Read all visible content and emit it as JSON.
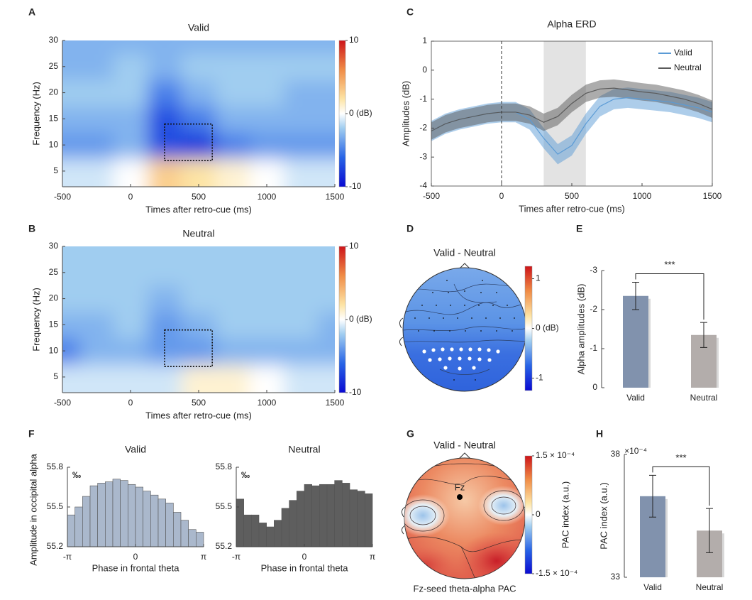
{
  "chart_data": [
    {
      "label": "A",
      "type": "heatmap",
      "title": "Valid",
      "x": [
        -500,
        -250,
        0,
        250,
        500,
        750,
        1000,
        1250,
        1500
      ],
      "y": [
        5,
        10,
        15,
        20,
        25,
        30
      ],
      "z": [
        [
          -1,
          -1,
          0,
          3,
          2,
          1,
          0,
          -1,
          -1
        ],
        [
          -4,
          -4,
          -3,
          -7,
          -8,
          -5,
          -4,
          -4,
          -4
        ],
        [
          -3,
          -3,
          -3,
          -7,
          -5,
          -3,
          -3,
          -3,
          -3
        ],
        [
          -2,
          -2,
          -2,
          -5,
          -3,
          -2,
          -2,
          -3,
          -3
        ],
        [
          -3,
          -3,
          -2,
          -3,
          -2,
          -2,
          -2,
          -2,
          -2
        ],
        [
          -3,
          -3,
          -3,
          -3,
          -3,
          -3,
          -3,
          -3,
          -3
        ]
      ],
      "xlim": [
        -500,
        1500
      ],
      "xticks": [
        -500,
        0,
        500,
        1000,
        1500
      ],
      "ylim": [
        2,
        30
      ],
      "yticks": [
        5,
        10,
        15,
        20,
        25,
        30
      ],
      "xlabel": "Times after retro-cue (ms)",
      "ylabel": "Frequency (Hz)",
      "clim": [
        -10,
        10
      ],
      "cticks": [
        10,
        {
          "value": 0,
          "label": "0 (dB)"
        },
        -10
      ],
      "roi": {
        "x": [
          250,
          600
        ],
        "y": [
          7,
          14
        ]
      }
    },
    {
      "label": "B",
      "type": "heatmap",
      "title": "Neutral",
      "x": [
        -500,
        -250,
        0,
        250,
        500,
        750,
        1000,
        1250,
        1500
      ],
      "y": [
        5,
        10,
        15,
        20,
        25,
        30
      ],
      "z": [
        [
          -1,
          -1,
          -1,
          -1,
          1,
          1,
          0,
          -1,
          -1
        ],
        [
          -5,
          -3,
          -3,
          -4,
          -4,
          -3,
          -3,
          -3,
          -3
        ],
        [
          -3,
          -3,
          -2,
          -4,
          -3,
          -2,
          -2,
          -2,
          -3
        ],
        [
          -2,
          -2,
          -2,
          -3,
          -2,
          -2,
          -2,
          -2,
          -2
        ],
        [
          -2,
          -2,
          -2,
          -2,
          -2,
          -2,
          -2,
          -2,
          -2
        ],
        [
          -2,
          -2,
          -2,
          -2,
          -2,
          -2,
          -2,
          -2,
          -2
        ]
      ],
      "xlim": [
        -500,
        1500
      ],
      "xticks": [
        -500,
        0,
        500,
        1000,
        1500
      ],
      "ylim": [
        2,
        30
      ],
      "yticks": [
        5,
        10,
        15,
        20,
        25,
        30
      ],
      "xlabel": "Times after retro-cue (ms)",
      "ylabel": "Frequency (Hz)",
      "clim": [
        -10,
        10
      ],
      "cticks": [
        10,
        {
          "value": 0,
          "label": "0 (dB)"
        },
        -10
      ],
      "roi": {
        "x": [
          250,
          600
        ],
        "y": [
          7,
          14
        ]
      }
    },
    {
      "label": "C",
      "type": "line",
      "title": "Alpha ERD",
      "x": [
        -500,
        -400,
        -300,
        -200,
        -100,
        0,
        100,
        200,
        300,
        400,
        500,
        600,
        700,
        800,
        900,
        1000,
        1100,
        1200,
        1300,
        1400,
        1500
      ],
      "series": [
        {
          "name": "Valid",
          "color": "#5b9bd5",
          "error": 0.35,
          "values": [
            -2.1,
            -1.85,
            -1.7,
            -1.6,
            -1.5,
            -1.45,
            -1.45,
            -1.7,
            -2.35,
            -2.9,
            -2.6,
            -1.85,
            -1.25,
            -1.0,
            -0.95,
            -1.0,
            -1.05,
            -1.1,
            -1.2,
            -1.3,
            -1.45
          ]
        },
        {
          "name": "Neutral",
          "color": "#5a5a5a",
          "error": 0.3,
          "values": [
            -2.1,
            -1.85,
            -1.7,
            -1.6,
            -1.5,
            -1.45,
            -1.45,
            -1.55,
            -1.8,
            -1.6,
            -1.15,
            -0.8,
            -0.65,
            -0.62,
            -0.68,
            -0.75,
            -0.8,
            -0.9,
            -1.0,
            -1.15,
            -1.35
          ]
        }
      ],
      "shade": [
        300,
        600
      ],
      "vline": 0,
      "xlim": [
        -500,
        1500
      ],
      "xticks": [
        -500,
        0,
        500,
        1000,
        1500
      ],
      "ylim": [
        -4,
        1
      ],
      "yticks": [
        -4,
        -3,
        -2,
        -1,
        0,
        1
      ],
      "xlabel": "Times after retro-cue (ms)",
      "ylabel": "Amplitudes (dB)",
      "legend": "upper right"
    },
    {
      "label": "D",
      "type": "topomap",
      "title": "Valid - Neutral",
      "clim": [
        -1.25,
        1.25
      ],
      "cticks": [
        1,
        {
          "value": 0,
          "label": "0 (dB)"
        },
        -1
      ]
    },
    {
      "label": "E",
      "type": "bar",
      "categories": [
        "Valid",
        "Neutral"
      ],
      "values": [
        -2.35,
        -1.35
      ],
      "errors": [
        0.35,
        0.32
      ],
      "colors": [
        "#8192ad",
        "#b3adab"
      ],
      "ylim": [
        0,
        -3
      ],
      "yticks": [
        0,
        -1,
        -2,
        -3
      ],
      "ylabel": "Alpha amplitudes (dB)",
      "annotation": "***"
    },
    {
      "label": "F",
      "type": "histogram",
      "title": "Valid",
      "bins": [
        -3.1416,
        -2.7925,
        -2.4435,
        -2.0944,
        -1.7453,
        -1.3963,
        -1.0472,
        -0.6981,
        -0.3491,
        0,
        0.3491,
        0.6981,
        1.0472,
        1.3963,
        1.7453,
        2.0944,
        2.4435,
        2.7925,
        3.1416
      ],
      "values": [
        55.44,
        55.5,
        55.58,
        55.66,
        55.68,
        55.69,
        55.71,
        55.7,
        55.67,
        55.65,
        55.62,
        55.59,
        55.56,
        55.53,
        55.46,
        55.4,
        55.33,
        55.31
      ],
      "color": "#aab8cc",
      "xlim": [
        -3.1416,
        3.1416
      ],
      "xticks": [
        {
          "value": -3.1416,
          "label": "-π"
        },
        0,
        {
          "value": 3.1416,
          "label": "π"
        }
      ],
      "ylim": [
        55.2,
        55.8
      ],
      "yticks": [
        55.2,
        55.5,
        55.8
      ],
      "unit": "‰",
      "xlabel": "Phase in frontal theta",
      "ylabel": "Amplitude in occipital alpha"
    },
    {
      "type": "histogram",
      "title": "Neutral",
      "bins": [
        -3.1416,
        -2.7925,
        -2.4435,
        -2.0944,
        -1.7453,
        -1.3963,
        -1.0472,
        -0.6981,
        -0.3491,
        0,
        0.3491,
        0.6981,
        1.0472,
        1.3963,
        1.7453,
        2.0944,
        2.4435,
        2.7925,
        3.1416
      ],
      "values": [
        55.56,
        55.44,
        55.44,
        55.38,
        55.35,
        55.4,
        55.49,
        55.55,
        55.62,
        55.67,
        55.66,
        55.67,
        55.67,
        55.7,
        55.68,
        55.63,
        55.62,
        55.6
      ],
      "color": "#5e5e5e",
      "xlim": [
        -3.1416,
        3.1416
      ],
      "xticks": [
        {
          "value": -3.1416,
          "label": "-π"
        },
        0,
        {
          "value": 3.1416,
          "label": "π"
        }
      ],
      "ylim": [
        55.2,
        55.8
      ],
      "yticks": [
        55.2,
        55.5,
        55.8
      ],
      "unit": "‰",
      "xlabel": "Phase in frontal theta"
    },
    {
      "label": "G",
      "type": "topomap",
      "title": "Valid - Neutral",
      "electrode": "Fz",
      "caption": "Fz-seed theta-alpha PAC",
      "clabel": "PAC index (a.u.)",
      "clim": [
        -0.00015,
        0.00015
      ],
      "cticks": [
        {
          "value": 0.00015,
          "label": "1.5 × 10⁻⁴"
        },
        0,
        {
          "value": -0.00015,
          "label": "-1.5 × 10⁻⁴"
        }
      ]
    },
    {
      "label": "H",
      "type": "bar",
      "categories": [
        "Valid",
        "Neutral"
      ],
      "values": [
        36.3,
        34.9
      ],
      "errors": [
        0.85,
        0.9
      ],
      "colors": [
        "#8192ad",
        "#b3adab"
      ],
      "ylim": [
        33,
        38
      ],
      "yticks": [
        33,
        38
      ],
      "scale": "×10⁻⁴",
      "ylabel": "PAC index (a.u.)",
      "annotation": "***"
    }
  ]
}
